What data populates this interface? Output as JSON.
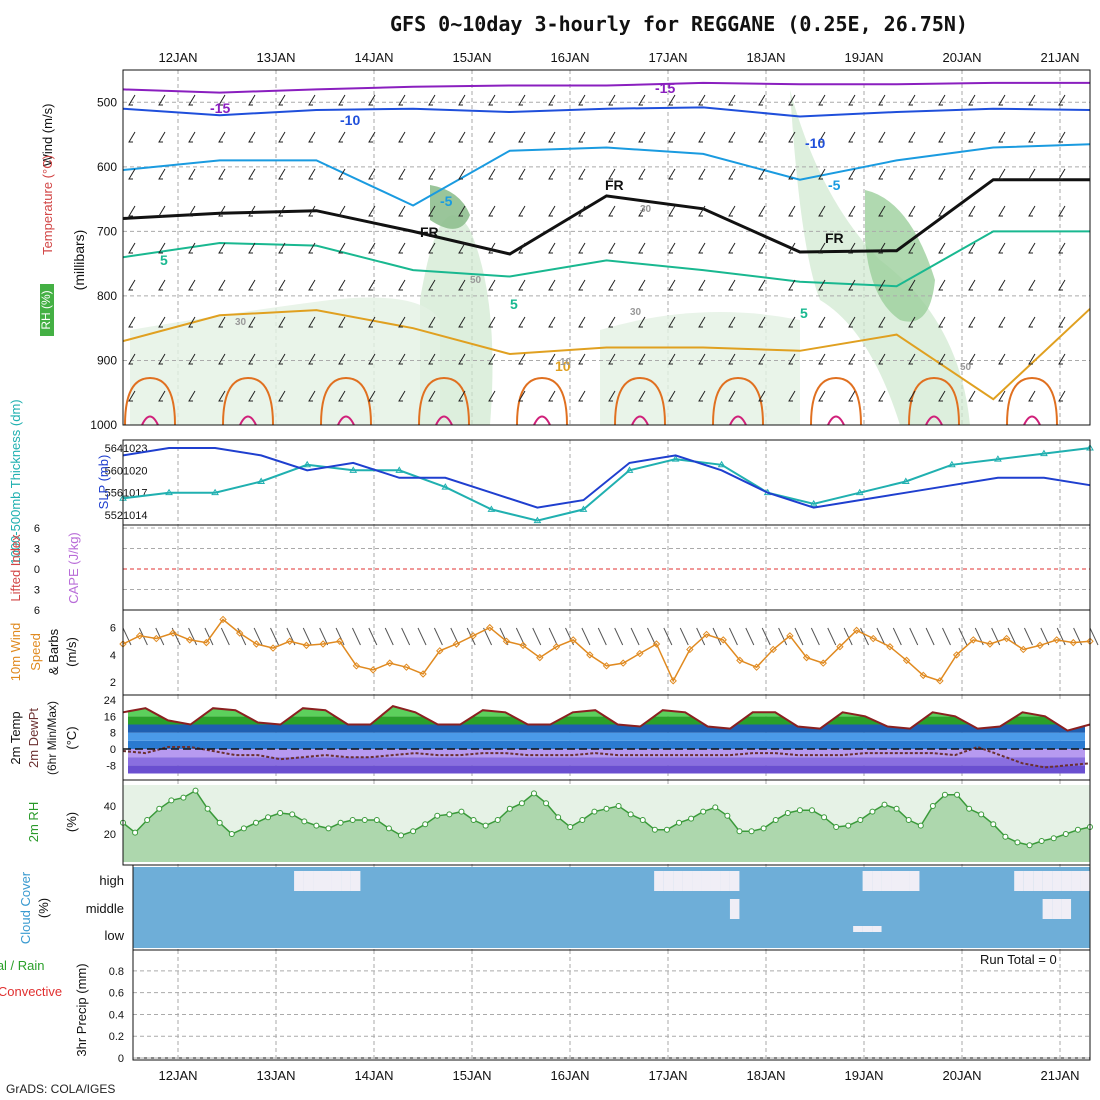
{
  "header": {
    "title": "GFS 0~10day 3-hourly for REGGANE (0.25E, 26.75N)"
  },
  "footer": {
    "credit": "GrADS: COLA/IGES"
  },
  "chart_data": [
    {
      "id": "upper_air",
      "type": "contour",
      "x_dates": [
        "12JAN",
        "13JAN",
        "14JAN",
        "15JAN",
        "16JAN",
        "17JAN",
        "18JAN",
        "19JAN",
        "20JAN",
        "21JAN"
      ],
      "ylabel": "(millibars)",
      "ylim": [
        1000,
        450
      ],
      "yticks": [
        500,
        600,
        700,
        800,
        900,
        1000
      ],
      "labels": {
        "wind": "Wind (m/s)",
        "temp": "Temperature (°C)",
        "rh": "RH (%)"
      },
      "contour_labels": [
        "-15",
        "-15",
        "-10",
        "-10",
        "-5",
        "-5",
        "5",
        "5",
        "5",
        "10",
        "FR",
        "FR",
        "FR",
        "10",
        "30",
        "30",
        "50",
        "50",
        "30"
      ],
      "isotherms": [
        {
          "t": -15,
          "color": "#8a1fbf",
          "p": [
            480,
            485,
            480,
            476,
            474,
            474,
            470,
            472,
            472,
            470,
            470
          ]
        },
        {
          "t": -10,
          "color": "#1f4fdb",
          "p": [
            510,
            520,
            512,
            510,
            515,
            510,
            508,
            522,
            515,
            510,
            512
          ]
        },
        {
          "t": -5,
          "color": "#1a9be0",
          "p": [
            605,
            590,
            590,
            660,
            575,
            570,
            580,
            620,
            590,
            570,
            565
          ]
        },
        {
          "t": 0,
          "color": "#111111",
          "p": [
            680,
            672,
            668,
            700,
            735,
            645,
            665,
            732,
            730,
            620,
            620
          ]
        },
        {
          "t": 5,
          "color": "#19b890",
          "p": [
            740,
            718,
            722,
            760,
            770,
            745,
            760,
            778,
            785,
            700,
            700
          ]
        },
        {
          "t": 10,
          "color": "#e0a020",
          "p": [
            870,
            830,
            822,
            850,
            890,
            880,
            880,
            885,
            860,
            960,
            820
          ]
        }
      ]
    },
    {
      "id": "thickness_slp",
      "type": "line",
      "labels": {
        "thickness": "1000-500mb Thickness (dm)",
        "slp": "SLP (mb)"
      },
      "yticks_left": [
        552,
        556,
        560,
        564
      ],
      "yticks_right": [
        1014,
        1017,
        1020,
        1023
      ],
      "series": [
        {
          "name": "Thickness",
          "color": "#20b0b0",
          "values": [
            555,
            556,
            556,
            558,
            561,
            560,
            560,
            557,
            553,
            551,
            553,
            560,
            562,
            561,
            556,
            554,
            556,
            558,
            561,
            562,
            563,
            564
          ]
        },
        {
          "name": "SLP",
          "color": "#1f3fcf",
          "values": [
            1022,
            1023,
            1023,
            1022,
            1020,
            1021,
            1019,
            1019,
            1017,
            1015,
            1016,
            1021,
            1022,
            1020,
            1017,
            1015,
            1016,
            1017,
            1018,
            1019,
            1019,
            1018
          ]
        }
      ]
    },
    {
      "id": "cape_li",
      "type": "line",
      "labels": {
        "li": "Lifted Index",
        "cape": "CAPE (J/kg)"
      },
      "yticks": [
        "6",
        "3",
        "0",
        "3",
        "6"
      ],
      "series": [
        {
          "name": "Lifted Index",
          "color": "#e03030",
          "values": [
            0,
            0,
            0,
            0,
            0,
            0,
            0,
            0,
            0,
            0
          ]
        }
      ]
    },
    {
      "id": "wind10m",
      "type": "line",
      "labels": {
        "main": "10m Wind",
        "speed": "Speed",
        "barbs": "& Barbs",
        "unit": "(m/s)"
      },
      "yticks": [
        2,
        4,
        6
      ],
      "series": [
        {
          "name": "Speed",
          "color": "#e08a20",
          "values": [
            4.8,
            5.4,
            5.2,
            5.6,
            5.1,
            4.9,
            6.6,
            5.6,
            4.8,
            4.5,
            5.0,
            4.7,
            4.8,
            5.0,
            3.2,
            2.9,
            3.4,
            3.1,
            2.6,
            4.3,
            4.8,
            5.4,
            6.0,
            5.0,
            4.7,
            3.8,
            4.6,
            5.1,
            4.0,
            3.2,
            3.4,
            4.1,
            4.8,
            2.1,
            4.4,
            5.5,
            5.1,
            3.6,
            3.1,
            4.4,
            5.4,
            3.8,
            3.4,
            4.6,
            5.8,
            5.2,
            4.6,
            3.6,
            2.5,
            2.1,
            4.0,
            5.1,
            4.8,
            5.2,
            4.4,
            4.7,
            5.1,
            4.9,
            5.0
          ]
        }
      ]
    },
    {
      "id": "temp2m",
      "type": "area",
      "labels": {
        "temp": "2m Temp",
        "dewpt": "2m DewPt",
        "minmax": "(6hr Min/Max)",
        "unit": "(°C)"
      },
      "yticks": [
        "24",
        "16",
        "8",
        "0",
        "-8"
      ],
      "series": [
        {
          "name": "2m Temp",
          "color": "#8b2020",
          "values": [
            18,
            20,
            14,
            12,
            20,
            19,
            13,
            12,
            20,
            19,
            12,
            12,
            21,
            18,
            12,
            12,
            19,
            18,
            12,
            12,
            18,
            19,
            12,
            11,
            19,
            18,
            11,
            10,
            18,
            18,
            11,
            10,
            18,
            16,
            11,
            10,
            18,
            16,
            10,
            11,
            18,
            16,
            9,
            12
          ]
        },
        {
          "name": "2m DewPt",
          "color": "#6b3030",
          "values": [
            -1,
            -2,
            1,
            1,
            -1,
            -3,
            -3,
            -5,
            -4,
            -3,
            -4,
            -4,
            -3,
            -2,
            -3,
            -3,
            -2,
            -2,
            -3,
            -3,
            -3,
            -2,
            -3,
            -3,
            -3,
            -3,
            -3,
            -3,
            -2,
            -2,
            -3,
            -3,
            -3,
            -2,
            -2,
            -2,
            -2,
            -3,
            1,
            -3,
            -7,
            -9,
            -8,
            -7
          ]
        }
      ]
    },
    {
      "id": "rh2m",
      "type": "area",
      "labels": {
        "main": "2m RH",
        "unit": "(%)"
      },
      "yticks": [
        20,
        40
      ],
      "series": [
        {
          "name": "2m RH",
          "color": "#3a9a3a",
          "values": [
            28,
            21,
            30,
            38,
            44,
            46,
            51,
            38,
            28,
            20,
            24,
            28,
            32,
            35,
            34,
            29,
            26,
            24,
            28,
            30,
            30,
            30,
            24,
            19,
            22,
            27,
            33,
            34,
            36,
            30,
            26,
            30,
            38,
            42,
            49,
            42,
            32,
            25,
            30,
            36,
            38,
            40,
            34,
            30,
            23,
            23,
            28,
            31,
            36,
            39,
            33,
            22,
            22,
            24,
            30,
            35,
            37,
            37,
            32,
            25,
            26,
            30,
            36,
            41,
            38,
            30,
            26,
            40,
            48,
            48,
            38,
            34,
            27,
            18,
            14,
            12,
            15,
            17,
            20,
            23,
            25
          ]
        }
      ]
    },
    {
      "id": "cloud",
      "type": "heatmap",
      "labels": {
        "main": "Cloud Cover",
        "unit": "(%)"
      },
      "levels": [
        "high",
        "middle",
        "low"
      ],
      "series": [
        {
          "name": "high",
          "values": [
            0,
            0,
            0,
            0,
            0,
            0,
            0,
            0,
            0,
            0,
            0,
            0,
            0,
            0,
            0,
            0,
            0,
            1,
            1,
            1,
            1,
            1,
            1,
            1,
            0,
            0,
            0,
            0,
            0,
            0,
            0,
            0,
            0,
            0,
            0,
            0,
            0,
            0,
            0,
            0,
            0,
            0,
            0,
            0,
            0,
            0,
            0,
            0,
            0,
            0,
            0,
            0,
            0,
            0,
            0,
            1,
            1,
            1,
            1,
            1,
            1,
            1,
            1,
            1,
            0,
            0,
            0,
            0,
            0,
            0,
            0,
            0,
            0,
            0,
            0,
            0,
            0,
            1,
            1,
            1,
            1,
            1,
            1,
            0,
            0,
            0,
            0,
            0,
            0,
            0,
            0,
            0,
            0,
            1,
            1,
            1,
            1,
            1,
            1,
            1,
            1
          ]
        },
        {
          "name": "middle",
          "values": [
            0,
            0,
            0,
            0,
            0,
            0,
            0,
            0,
            0,
            0,
            0,
            0,
            0,
            0,
            0,
            0,
            0,
            0,
            0,
            0,
            0,
            0,
            0,
            0,
            0,
            0,
            0,
            0,
            0,
            0,
            0,
            0,
            0,
            0,
            0,
            0,
            0,
            0,
            0,
            0,
            0,
            0,
            0,
            0,
            0,
            0,
            0,
            0,
            0,
            0,
            0,
            0,
            0,
            0,
            0,
            0,
            0,
            0,
            0,
            0,
            0,
            0,
            0,
            1,
            0,
            0,
            0,
            0,
            0,
            0,
            0,
            0,
            0,
            0,
            0,
            0,
            0,
            0,
            0,
            0,
            0,
            0,
            0,
            0,
            0,
            0,
            0,
            0,
            0,
            0,
            0,
            0,
            0,
            0,
            0,
            0,
            1,
            1,
            1,
            0,
            0
          ]
        },
        {
          "name": "low",
          "values": [
            0,
            0,
            0,
            0,
            0,
            0,
            0,
            0,
            0,
            0,
            0,
            0,
            0,
            0,
            0,
            0,
            0,
            0,
            0,
            0,
            0,
            0,
            0,
            0,
            0,
            0,
            0,
            0,
            0,
            0,
            0,
            0,
            0,
            0,
            0,
            0,
            0,
            0,
            0,
            0,
            0,
            0,
            0,
            0,
            0,
            0,
            0,
            0,
            0,
            0,
            0,
            0,
            0,
            0,
            0,
            0,
            0,
            0,
            0,
            0,
            0,
            0,
            0,
            0,
            0,
            0,
            0,
            0,
            0,
            0,
            0,
            0,
            0,
            0,
            0,
            0,
            1,
            1,
            1,
            0,
            0,
            0,
            0,
            0,
            0,
            0,
            0,
            0,
            0,
            0,
            0,
            0,
            0,
            0,
            0,
            0,
            0,
            0,
            0,
            0,
            0
          ]
        }
      ]
    },
    {
      "id": "precip",
      "type": "bar",
      "labels": {
        "total": "Total / Rain",
        "convective": "Convective",
        "main": "3hr Precip (mm)",
        "run_total": "Run Total = 0"
      },
      "yticks": [
        "0",
        "0.2",
        "0.4",
        "0.6",
        "0.8"
      ],
      "ylim": [
        0,
        0.9
      ],
      "series": [
        {
          "name": "3hr Precip",
          "values": [
            0,
            0,
            0,
            0,
            0,
            0,
            0,
            0,
            0,
            0
          ]
        }
      ]
    }
  ]
}
